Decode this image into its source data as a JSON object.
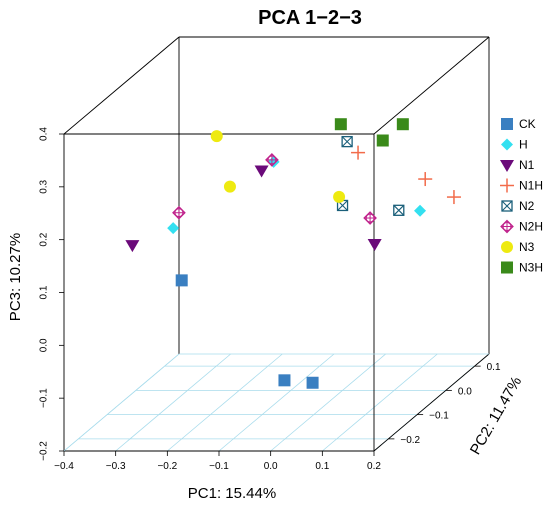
{
  "chart_data": {
    "type": "scatter3d",
    "title": "PCA  1−2−3",
    "xlabel": "PC1: 15.44%",
    "ylabel": "PC2: 11.47%",
    "zlabel": "PC3: 10.27%",
    "xlim": [
      -0.4,
      0.2
    ],
    "ylim": [
      -0.25,
      0.15
    ],
    "zlim": [
      -0.2,
      0.4
    ],
    "x_ticks": [
      "−0.4",
      "−0.3",
      "−0.2",
      "−0.1",
      "0.0",
      "0.1",
      "0.2"
    ],
    "y_ticks": [
      "−0.2",
      "−0.1",
      "0.0",
      "0.1"
    ],
    "z_ticks": [
      "−0.2",
      "−0.1",
      "0.0",
      "0.1",
      "0.2",
      "0.3",
      "0.4"
    ],
    "grid": "floor",
    "legend_position": "right",
    "series": [
      {
        "name": "CK",
        "marker": "square",
        "color": "#3a7fc1",
        "points": [
          [
            -0.2,
            -0.2,
            0.1
          ],
          [
            0.01,
            -0.22,
            -0.08
          ],
          [
            0.07,
            -0.23,
            -0.08
          ]
        ]
      },
      {
        "name": "H",
        "marker": "diamond",
        "color": "#33e0f0",
        "points": [
          [
            -0.3,
            -0.05,
            0.13
          ],
          [
            -0.1,
            -0.06,
            0.26
          ],
          [
            0.15,
            0.0,
            0.14
          ]
        ]
      },
      {
        "name": "N1",
        "marker": "triangle-down",
        "color": "#6b0a7a",
        "points": [
          [
            -0.34,
            -0.12,
            0.13
          ],
          [
            -0.14,
            -0.03,
            0.23
          ],
          [
            0.09,
            -0.05,
            0.1
          ]
        ]
      },
      {
        "name": "N1H",
        "marker": "plus",
        "color": "#f26b4a",
        "points": [
          [
            0.03,
            0.0,
            0.25
          ],
          [
            0.16,
            0.0,
            0.2
          ],
          [
            0.16,
            0.1,
            0.12
          ]
        ]
      },
      {
        "name": "N2",
        "marker": "square-x",
        "color": "#1a5f7a",
        "points": [
          [
            0.02,
            -0.02,
            0.28
          ],
          [
            0.0,
            0.0,
            0.15
          ],
          [
            0.12,
            -0.02,
            0.15
          ]
        ]
      },
      {
        "name": "N2H",
        "marker": "circle-plus",
        "color": "#c0238c",
        "points": [
          [
            -0.3,
            -0.03,
            0.15
          ],
          [
            -0.12,
            -0.03,
            0.25
          ],
          [
            0.07,
            -0.03,
            0.14
          ]
        ]
      },
      {
        "name": "N3",
        "marker": "circle",
        "color": "#eeea10",
        "points": [
          [
            -0.16,
            -0.15,
            0.35
          ],
          [
            -0.14,
            -0.14,
            0.25
          ],
          [
            0.01,
            -0.03,
            0.18
          ]
        ]
      },
      {
        "name": "N3H",
        "marker": "square",
        "color": "#3a8a1a",
        "points": [
          [
            -0.02,
            0.03,
            0.29
          ],
          [
            0.05,
            0.05,
            0.25
          ],
          [
            0.1,
            0.03,
            0.29
          ]
        ]
      }
    ]
  }
}
